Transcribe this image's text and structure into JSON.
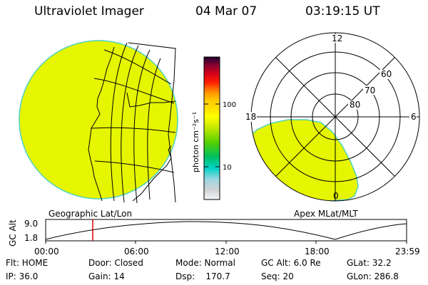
{
  "header": {
    "instrument": "Ultraviolet Imager",
    "date": "04 Mar 07",
    "time": "03:19:15 UT"
  },
  "colorbar": {
    "unit_label": "photon cm⁻²s⁻¹",
    "tick_100": "100",
    "tick_10": "10",
    "stops": [
      "#f4f4f4",
      "#cfd3d6",
      "#9fd6e0",
      "#00d3c8",
      "#00c060",
      "#55d000",
      "#c0e800",
      "#ffff00",
      "#ffc800",
      "#ff8800",
      "#ff2000",
      "#d8001a",
      "#8a0030",
      "#200030"
    ]
  },
  "polar_plot": {
    "label_12": "12",
    "label_18": "18",
    "label_6": "6",
    "label_0": "0",
    "ring_60": "60",
    "ring_70": "70",
    "ring_80": "80"
  },
  "plot_labels": {
    "geo": "Geographic Lat/Lon",
    "apex": "Apex MLat/MLT"
  },
  "altitude_chart": {
    "y_title": "GC Alt",
    "y_max_label": "9.0",
    "y_min_label": "1.8",
    "x_ticks": [
      "00:00",
      "06:00",
      "12:00",
      "18:00",
      "23:59"
    ]
  },
  "info": {
    "flt": "Flt: HOME",
    "door": "Door: Closed",
    "mode": "Mode: Normal",
    "gcalt": "GC Alt: 6.0 Re",
    "glat": "GLat:  32.2",
    "ip": "IP: 36.0",
    "gain": "Gain: 14",
    "dsp": "Dsp:    170.7",
    "seq": "Seq: 20",
    "glon": "GLon: 286.8"
  },
  "colors": {
    "aurora_fill": "#e6f500",
    "aurora_edge": "#4ed2c0",
    "marker": "#e00000"
  }
}
